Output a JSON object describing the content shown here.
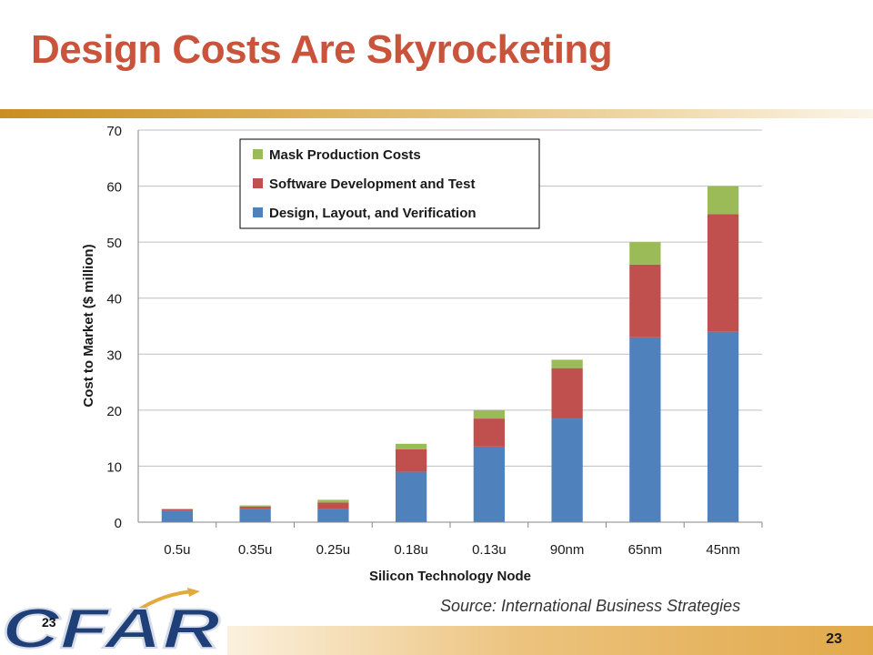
{
  "slide": {
    "title": "Design Costs Are Skyrocketing",
    "source": "Source: International Business Strategies",
    "page_number": "23",
    "logo_text": "CFAR",
    "logo_page_number": "23"
  },
  "colors": {
    "title": "#c9533b",
    "mask": "#9bbb59",
    "software": "#c0504d",
    "design": "#4f81bd"
  },
  "chart_data": {
    "type": "bar",
    "stacked": true,
    "categories": [
      "0.5u",
      "0.35u",
      "0.25u",
      "0.18u",
      "0.13u",
      "90nm",
      "65nm",
      "45nm"
    ],
    "series": [
      {
        "name": "Design, Layout, and Verification",
        "values": [
          2,
          2.3,
          2.3,
          9,
          13.5,
          18.5,
          33,
          34
        ],
        "color": "#4f81bd"
      },
      {
        "name": "Software Development and Test",
        "values": [
          0.3,
          0.5,
          1.2,
          4,
          5,
          9,
          13,
          21
        ],
        "color": "#c0504d"
      },
      {
        "name": "Mask Production Costs",
        "values": [
          0.1,
          0.2,
          0.5,
          1,
          1.5,
          1.5,
          4,
          5
        ],
        "color": "#9bbb59"
      }
    ],
    "xlabel": "Silicon Technology Node",
    "ylabel": "Cost to Market ($ million)",
    "ylim": [
      0,
      70
    ],
    "yticks": [
      0,
      10,
      20,
      30,
      40,
      50,
      60,
      70
    ],
    "grid": true,
    "legend_position": "top-left",
    "legend_order": [
      "Mask Production Costs",
      "Software Development and Test",
      "Design, Layout, and Verification"
    ]
  }
}
